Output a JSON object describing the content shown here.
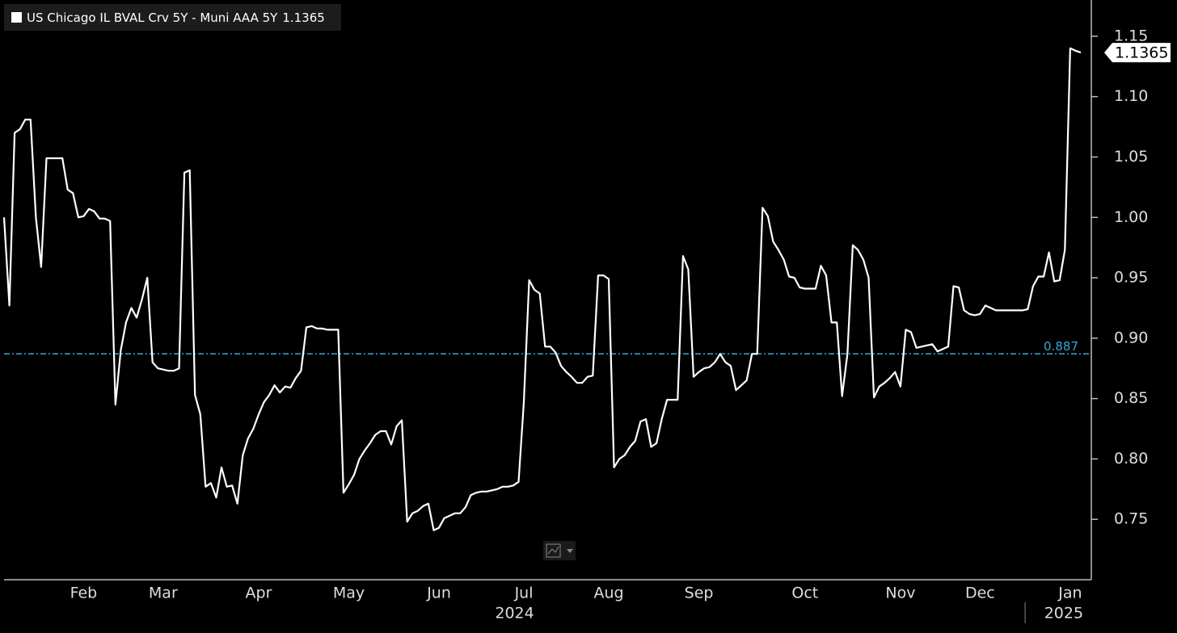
{
  "chart_data": {
    "type": "line",
    "series": [
      {
        "name": "US Chicago IL BVAL Crv 5Y - Muni AAA 5Y",
        "color": "#ffffff",
        "values": [
          1.0,
          0.927,
          1.07,
          1.073,
          1.081,
          1.081,
          1.0,
          0.959,
          1.049,
          1.049,
          1.049,
          1.049,
          1.023,
          1.02,
          1.0,
          1.001,
          1.007,
          1.005,
          0.999,
          0.999,
          0.997,
          0.845,
          0.89,
          0.913,
          0.925,
          0.917,
          0.932,
          0.95,
          0.88,
          0.875,
          0.874,
          0.873,
          0.873,
          0.875,
          1.037,
          1.039,
          0.853,
          0.837,
          0.777,
          0.78,
          0.768,
          0.793,
          0.777,
          0.778,
          0.763,
          0.803,
          0.817,
          0.825,
          0.837,
          0.847,
          0.853,
          0.861,
          0.855,
          0.86,
          0.859,
          0.867,
          0.873,
          0.909,
          0.91,
          0.908,
          0.908,
          0.907,
          0.907,
          0.907,
          0.772,
          0.779,
          0.787,
          0.8,
          0.807,
          0.813,
          0.82,
          0.823,
          0.823,
          0.812,
          0.827,
          0.832,
          0.748,
          0.755,
          0.757,
          0.761,
          0.763,
          0.741,
          0.743,
          0.751,
          0.753,
          0.755,
          0.755,
          0.76,
          0.77,
          0.772,
          0.773,
          0.773,
          0.774,
          0.775,
          0.777,
          0.777,
          0.778,
          0.781,
          0.847,
          0.948,
          0.94,
          0.937,
          0.893,
          0.893,
          0.888,
          0.877,
          0.872,
          0.868,
          0.863,
          0.863,
          0.868,
          0.869,
          0.952,
          0.952,
          0.949,
          0.793,
          0.8,
          0.803,
          0.81,
          0.815,
          0.831,
          0.833,
          0.81,
          0.813,
          0.833,
          0.849,
          0.849,
          0.849,
          0.968,
          0.957,
          0.868,
          0.872,
          0.875,
          0.876,
          0.88,
          0.887,
          0.88,
          0.877,
          0.857,
          0.861,
          0.865,
          0.887,
          0.887,
          1.008,
          1.001,
          0.98,
          0.973,
          0.965,
          0.951,
          0.95,
          0.942,
          0.941,
          0.941,
          0.941,
          0.96,
          0.952,
          0.913,
          0.913,
          0.852,
          0.887,
          0.977,
          0.973,
          0.965,
          0.95,
          0.851,
          0.86,
          0.863,
          0.867,
          0.872,
          0.86,
          0.907,
          0.905,
          0.892,
          0.893,
          0.894,
          0.895,
          0.889,
          0.891,
          0.893,
          0.943,
          0.942,
          0.923,
          0.92,
          0.919,
          0.92,
          0.927,
          0.925,
          0.923,
          0.923,
          0.923,
          0.923,
          0.923,
          0.923,
          0.924,
          0.943,
          0.951,
          0.951,
          0.971,
          0.947,
          0.948,
          0.973,
          1.14,
          1.138,
          1.1365
        ]
      }
    ],
    "categories": [
      null,
      null,
      null,
      null,
      null,
      null,
      null,
      null,
      null,
      null,
      null,
      null,
      null,
      null,
      null,
      "Feb",
      null,
      null,
      null,
      null,
      null,
      null,
      null,
      null,
      null,
      null,
      null,
      null,
      null,
      null,
      "Mar",
      null,
      null,
      null,
      null,
      null,
      null,
      null,
      null,
      null,
      null,
      null,
      null,
      null,
      null,
      null,
      null,
      null,
      "Apr",
      null,
      null,
      null,
      null,
      null,
      null,
      null,
      null,
      null,
      null,
      null,
      null,
      null,
      null,
      null,
      null,
      "May",
      null,
      null,
      null,
      null,
      null,
      null,
      null,
      null,
      null,
      null,
      null,
      null,
      null,
      null,
      null,
      null,
      "Jun",
      null,
      null,
      null,
      null,
      null,
      null,
      null,
      null,
      null,
      null,
      null,
      null,
      null,
      null,
      null,
      "Jul",
      null,
      null,
      null,
      null,
      null,
      null,
      null,
      null,
      null,
      null,
      null,
      null,
      null,
      null,
      null,
      "Aug",
      null,
      null,
      null,
      null,
      null,
      null,
      null,
      null,
      null,
      null,
      null,
      null,
      null,
      null,
      null,
      null,
      "Sep",
      null,
      null,
      null,
      null,
      null,
      null,
      null,
      null,
      null,
      null,
      null,
      null,
      null,
      null,
      null,
      null,
      null,
      null,
      null,
      "Oct",
      null,
      null,
      null,
      null,
      null,
      null,
      null,
      null,
      null,
      null,
      null,
      null,
      null,
      null,
      null,
      null,
      null,
      "Nov",
      null,
      null,
      null,
      null,
      null,
      null,
      null,
      null,
      null,
      null,
      null,
      null,
      null,
      null,
      "Dec",
      null,
      null,
      null,
      null,
      null,
      null,
      null,
      null,
      null,
      null,
      null,
      null,
      null,
      null,
      null,
      null,
      "Jan",
      null,
      null
    ],
    "x_groups": [
      "2024",
      "2025"
    ],
    "ylim": [
      0.7,
      1.18
    ],
    "yticks": [
      0.75,
      {
        "value": 0.8,
        "label": "0.80"
      },
      0.85,
      {
        "value": 0.9,
        "label": "0.90"
      },
      0.95,
      {
        "value": 1,
        "label": "1.00"
      },
      1.05,
      {
        "value": 1.1,
        "label": "1.10"
      },
      1.15
    ],
    "reference_line": {
      "value": 0.887,
      "color": "#3aa6d6"
    }
  }
}
